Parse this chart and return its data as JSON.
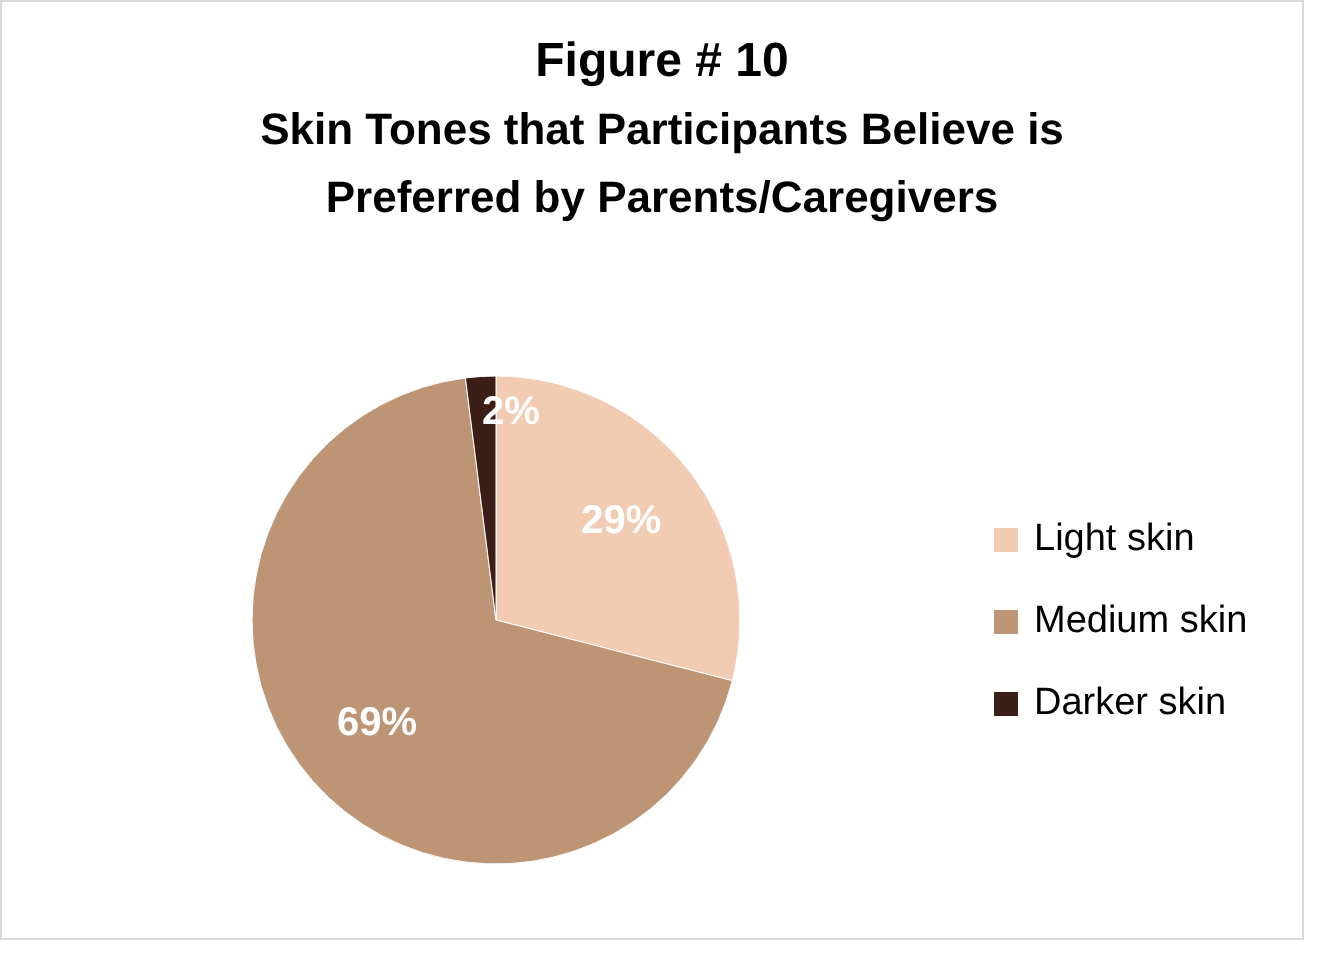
{
  "chart_data": {
    "type": "pie",
    "title": "Figure # 10\nSkin Tones that Participants Believe is\nPreferred by Parents/Caregivers",
    "categories": [
      "Light skin",
      "Medium skin",
      "Darker skin"
    ],
    "values": [
      29,
      69,
      2
    ],
    "colors": [
      "#f2cbb3",
      "#bd9474",
      "#3b1e16"
    ],
    "value_labels": [
      "29%",
      "69%",
      "2%"
    ],
    "legend": "right"
  }
}
